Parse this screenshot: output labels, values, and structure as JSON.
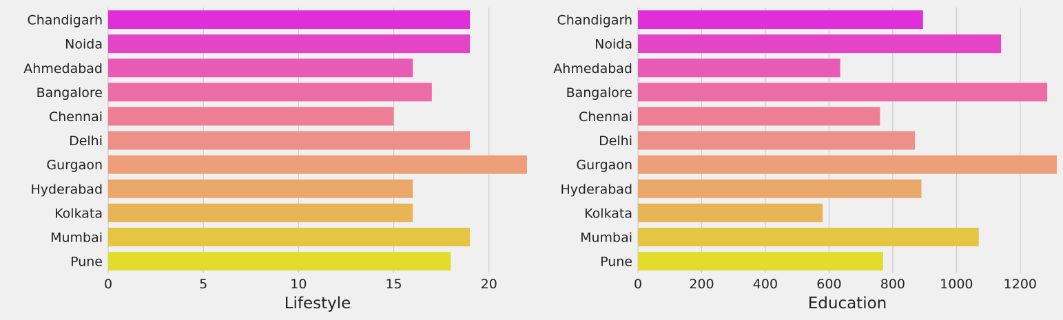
{
  "chart_data": [
    {
      "type": "bar",
      "orientation": "horizontal",
      "categories": [
        "Chandigarh",
        "Noida",
        "Ahmedabad",
        "Bangalore",
        "Chennai",
        "Delhi",
        "Gurgaon",
        "Hyderabad",
        "Kolkata",
        "Mumbai",
        "Pune"
      ],
      "values": [
        19,
        19,
        16,
        17,
        15,
        19,
        22,
        16,
        16,
        19,
        18
      ],
      "xlabel": "Lifestyle",
      "ylabel": "",
      "xlim": [
        0,
        22
      ],
      "xticks": [
        0,
        5,
        10,
        15,
        20
      ],
      "grid": true
    },
    {
      "type": "bar",
      "orientation": "horizontal",
      "categories": [
        "Chandigarh",
        "Noida",
        "Ahmedabad",
        "Bangalore",
        "Chennai",
        "Delhi",
        "Gurgaon",
        "Hyderabad",
        "Kolkata",
        "Mumbai",
        "Pune"
      ],
      "values": [
        895,
        1140,
        635,
        1285,
        760,
        870,
        1315,
        890,
        580,
        1070,
        770
      ],
      "xlabel": "Education",
      "ylabel": "",
      "xlim": [
        0,
        1315
      ],
      "xticks": [
        0,
        200,
        400,
        600,
        800,
        1000,
        1200
      ],
      "grid": true
    }
  ],
  "colors": [
    "#e02fd8",
    "#e345c6",
    "#e85ab5",
    "#ec6ca6",
    "#ee7e95",
    "#ef9088",
    "#ee9e7a",
    "#eaa76a",
    "#e8b458",
    "#e6c542",
    "#e2dc2e"
  ]
}
